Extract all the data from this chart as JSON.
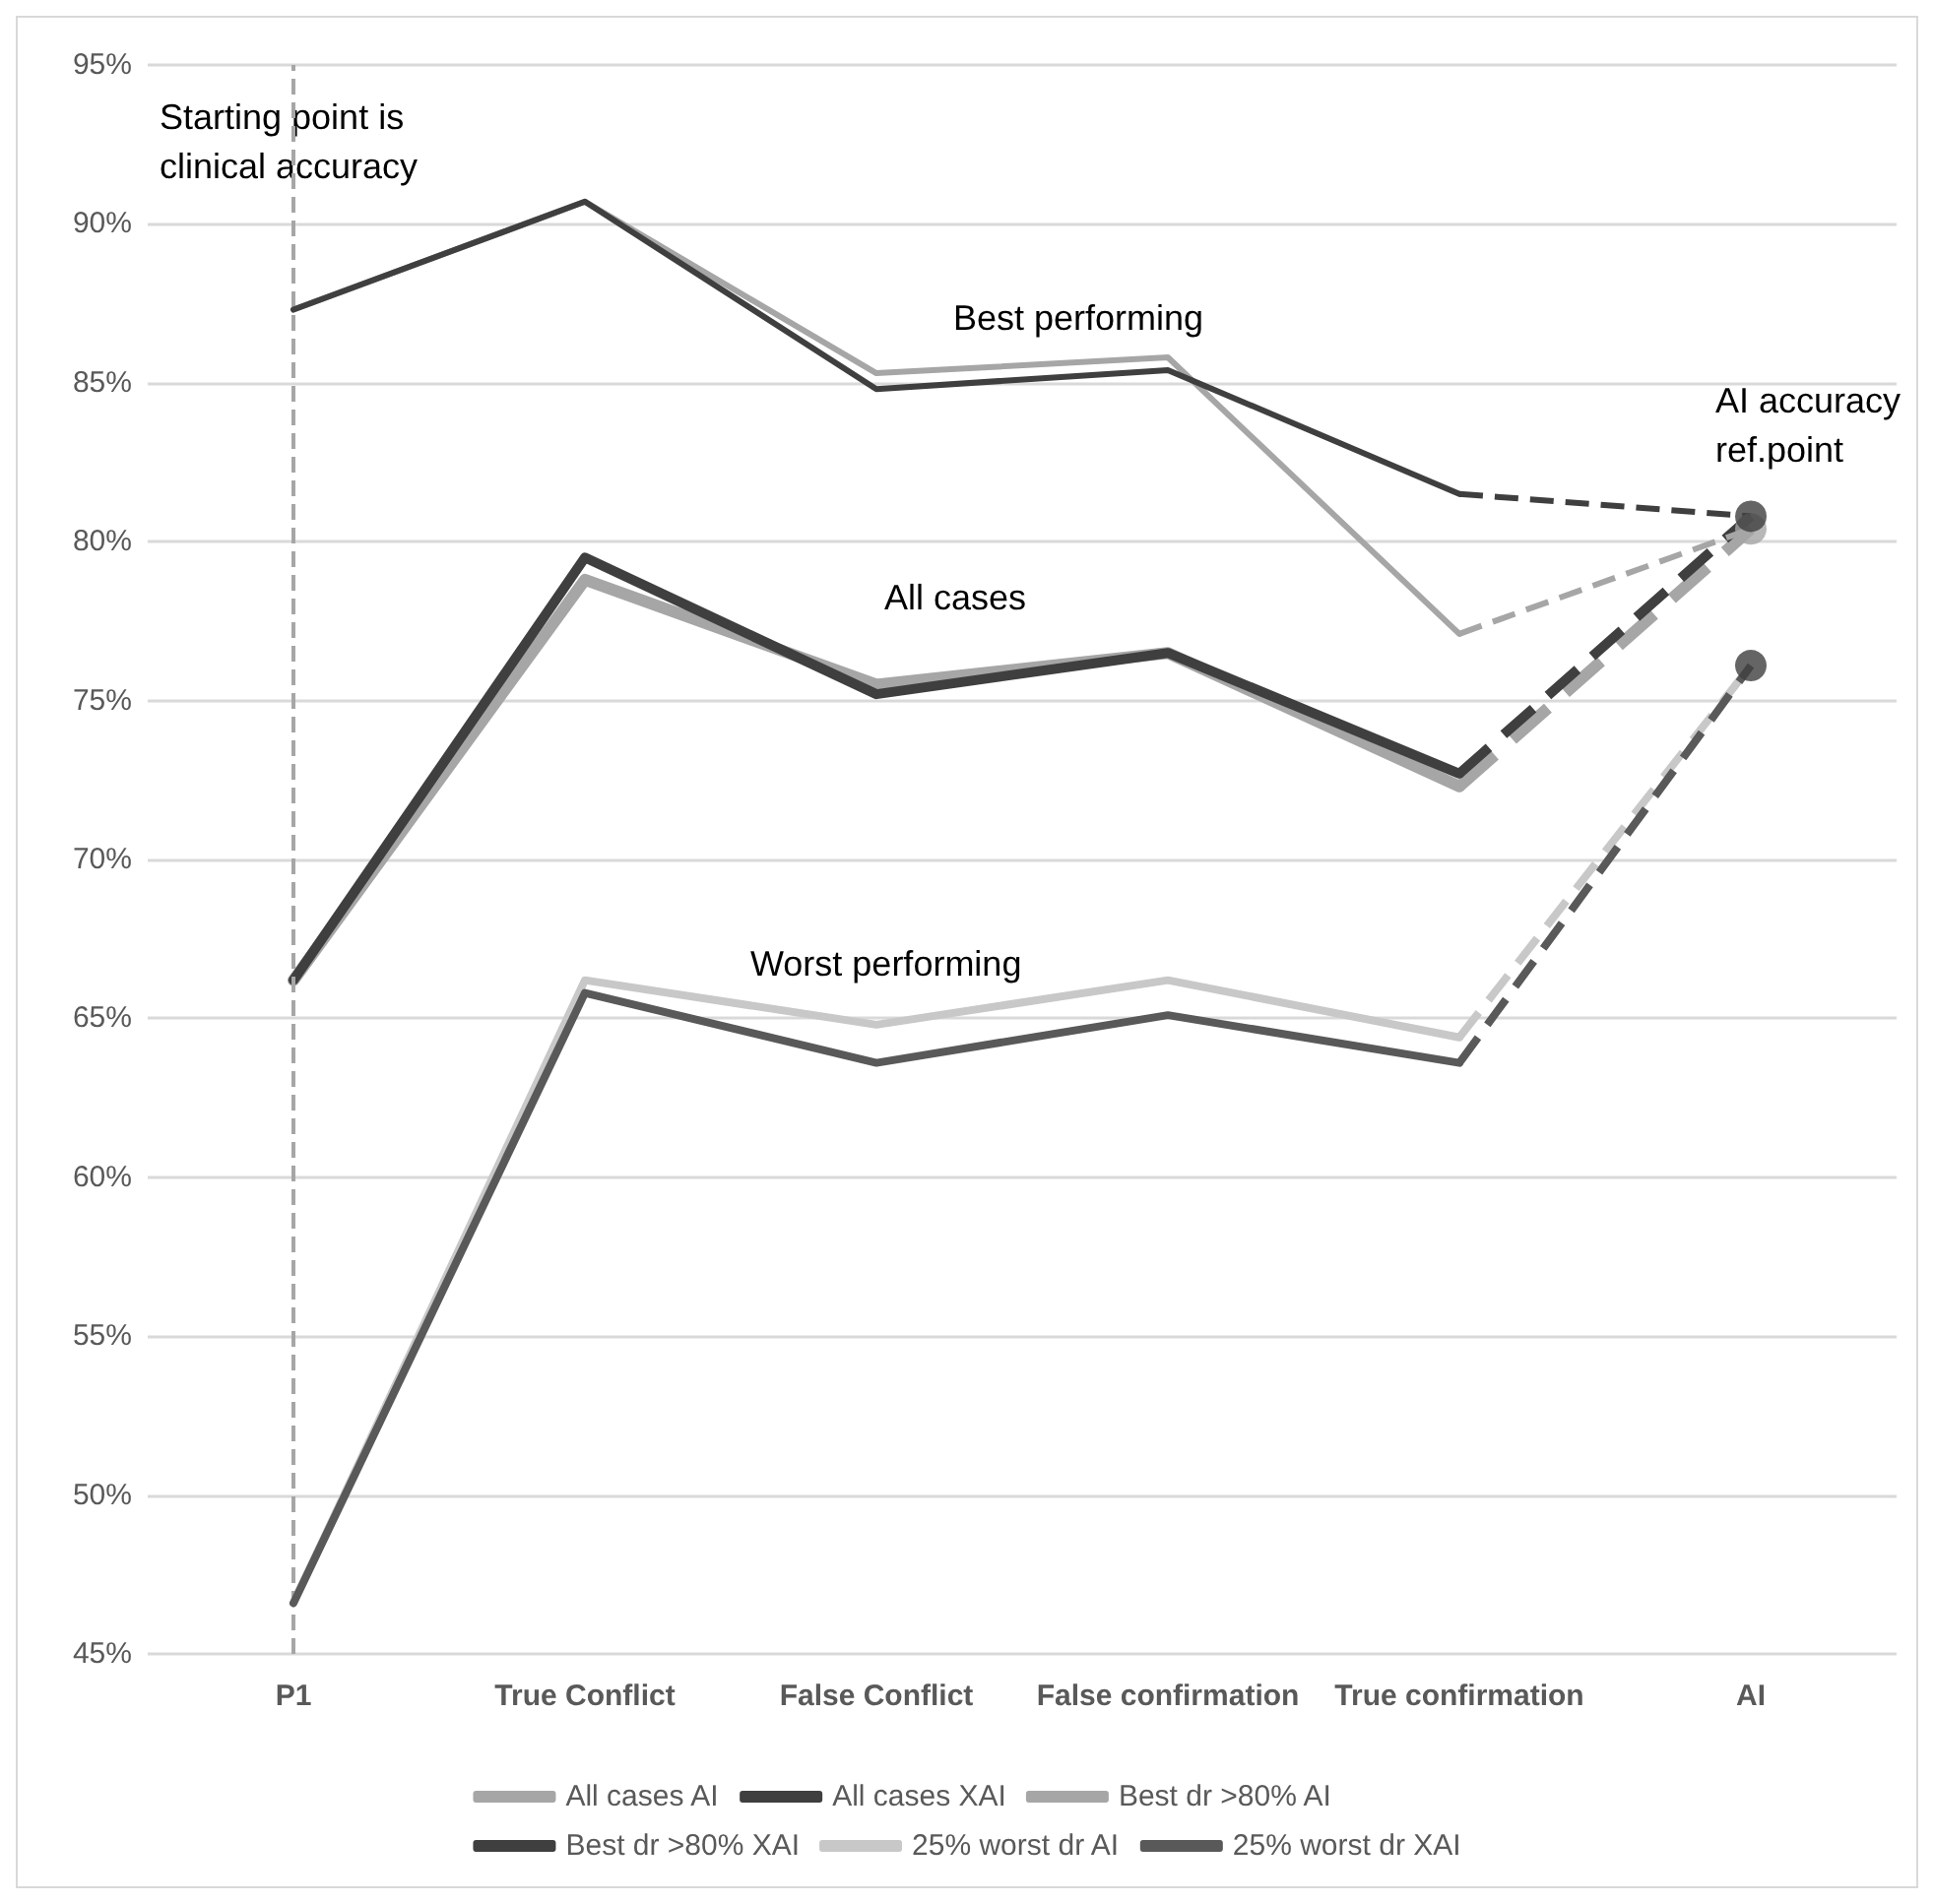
{
  "chart_data": {
    "type": "line",
    "categories": [
      "P1",
      "True Conflict",
      "False Conflict",
      "False confirmation",
      "True confirmation",
      "AI"
    ],
    "series": [
      {
        "name": "All cases AI",
        "color": "#a6a6a6",
        "values": [
          66.2,
          78.8,
          75.5,
          76.5,
          72.3,
          80.4
        ]
      },
      {
        "name": "All cases XAI",
        "color": "#3f3f3f",
        "values": [
          66.2,
          79.5,
          75.2,
          76.5,
          72.7,
          80.8
        ]
      },
      {
        "name": "Best dr >80% AI",
        "color": "#a6a6a6",
        "values": [
          87.3,
          90.7,
          85.3,
          85.8,
          77.1,
          80.4
        ]
      },
      {
        "name": "Best dr >80% XAI",
        "color": "#3f3f3f",
        "values": [
          87.3,
          90.7,
          84.8,
          85.4,
          81.5,
          80.8
        ]
      },
      {
        "name": "25% worst dr AI",
        "color": "#c8c8c8",
        "values": [
          46.6,
          66.2,
          64.8,
          66.2,
          64.4,
          76.1
        ]
      },
      {
        "name": "25% worst dr XAI",
        "color": "#595959",
        "values": [
          46.6,
          65.8,
          63.6,
          65.1,
          63.6,
          76.1
        ]
      },
      {
        "type": "scatter",
        "color": "#a6a6a6",
        "x": [
          "AI"
        ],
        "values": [
          80.4
        ],
        "marker": "circle"
      },
      {
        "type": "scatter",
        "color": "#3f3f3f",
        "x": [
          "AI"
        ],
        "values": [
          80.8
        ],
        "marker": "circle"
      },
      {
        "type": "scatter",
        "color": "#3f3f3f",
        "x": [
          "AI"
        ],
        "values": [
          76.1
        ],
        "marker": "circle"
      }
    ],
    "ylim": [
      45,
      95
    ],
    "yticks": [
      {
        "value": 45,
        "label": "45%"
      },
      {
        "value": 50,
        "label": "50%"
      },
      {
        "value": 55,
        "label": "55%"
      },
      {
        "value": 60,
        "label": "60%"
      },
      {
        "value": 65,
        "label": "65%"
      },
      {
        "value": 70,
        "label": "70%"
      },
      {
        "value": 75,
        "label": "75%"
      },
      {
        "value": 80,
        "label": "80%"
      },
      {
        "value": 85,
        "label": "85%"
      },
      {
        "value": 90,
        "label": "90%"
      },
      {
        "value": 95,
        "label": "95%"
      }
    ],
    "grid": "y",
    "legend": "bottom",
    "marker": "none",
    "ref_lines": [
      {
        "axis": "x",
        "value": "P1",
        "color": "#a6a6a6",
        "line_style": "dashed"
      }
    ],
    "annotations": [
      "Starting point is clinical accuracy",
      "Best performing",
      "All cases",
      "Worst performing",
      "AI accuracy ref.point"
    ]
  }
}
